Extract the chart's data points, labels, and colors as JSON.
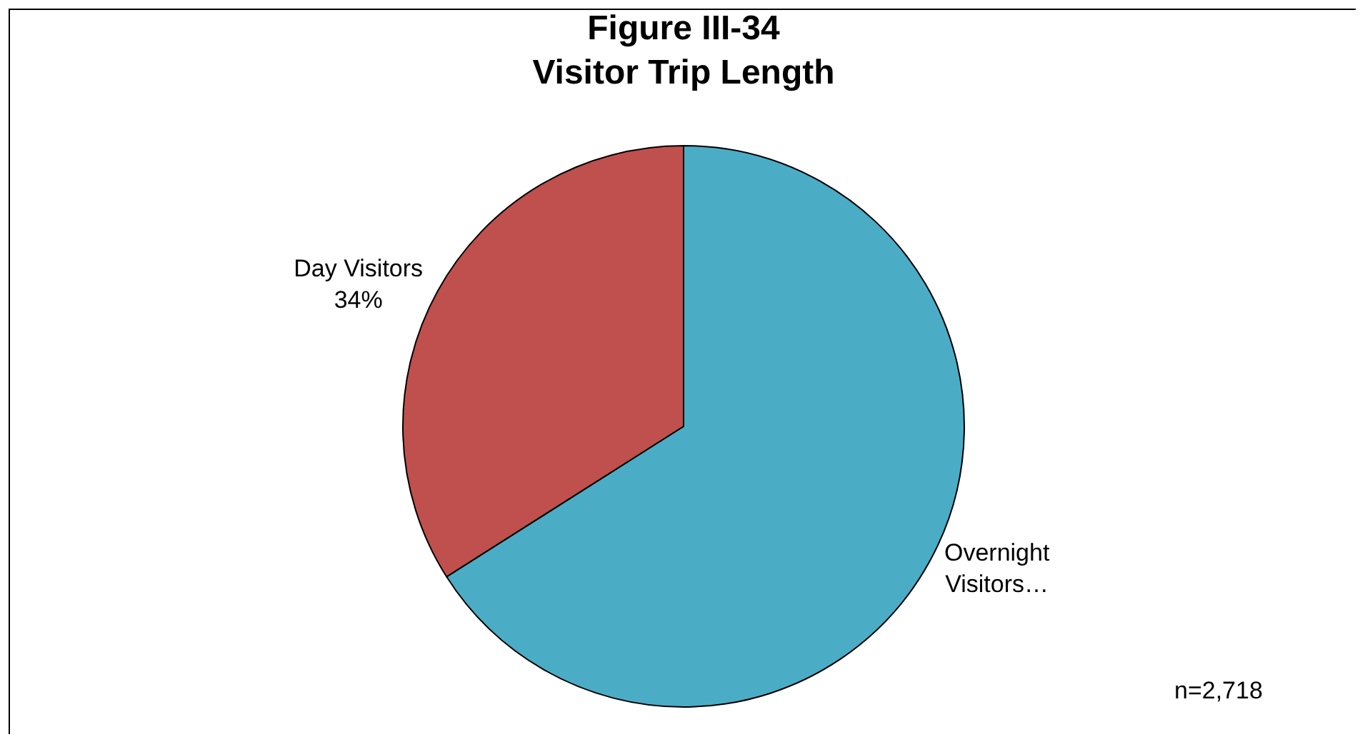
{
  "chart_data": {
    "type": "pie",
    "title": "Figure III-34\nVisitor Trip Length",
    "categories": [
      "Overnight Visitors…",
      "Day Visitors"
    ],
    "values": [
      66,
      34
    ],
    "value_labels": [
      null,
      "34%"
    ],
    "colors": [
      "#4bacc6",
      "#c0504d"
    ],
    "legend": false,
    "annotations": [
      "n=2,718"
    ]
  }
}
